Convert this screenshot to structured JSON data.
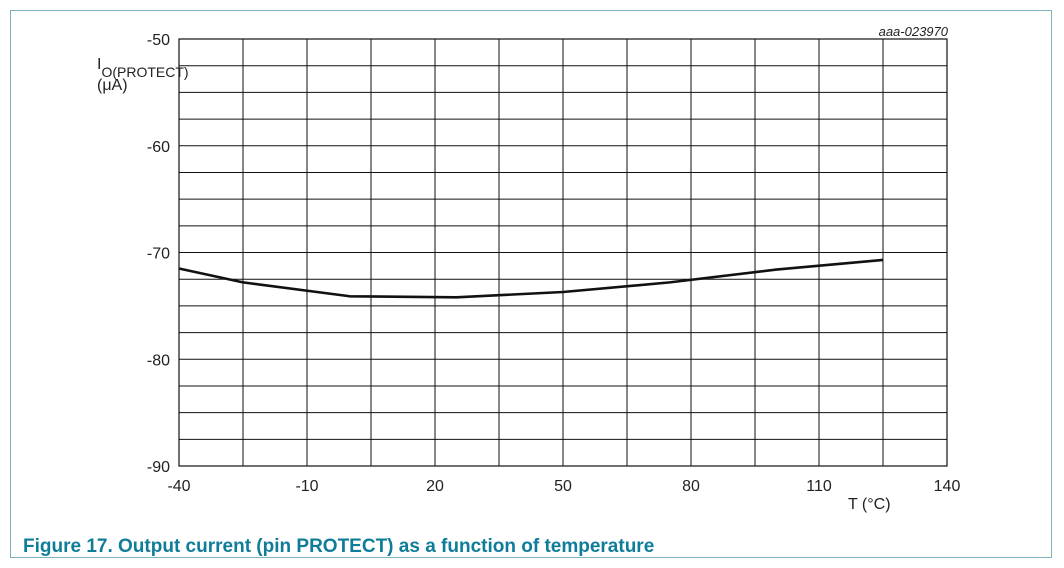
{
  "figure": {
    "caption": "Figure 17. Output current (pin PROTECT) as a function of temperature",
    "note": "aaa-023970"
  },
  "chart_data": {
    "type": "line",
    "title": "",
    "xlabel": "T (°C)",
    "ylabel_main": "I",
    "ylabel_sub": "O(PROTECT)",
    "ylabel_unit": "(μA)",
    "xlim": [
      -40,
      140
    ],
    "ylim": [
      -90,
      -50
    ],
    "x_ticks": [
      -40,
      -10,
      20,
      50,
      80,
      110,
      140
    ],
    "y_ticks": [
      -90,
      -80,
      -70,
      -60,
      -50
    ],
    "x_minor_step": 15,
    "y_minor_step": 2.5,
    "grid": true,
    "colors": {
      "line": "#111111",
      "grid": "#111111"
    },
    "series": [
      {
        "x": [
          -40,
          -25,
          0,
          25,
          50,
          75,
          100,
          125
        ],
        "y": [
          -71.5,
          -72.8,
          -74.1,
          -74.2,
          -73.7,
          -72.8,
          -71.6,
          -70.7
        ]
      }
    ]
  }
}
